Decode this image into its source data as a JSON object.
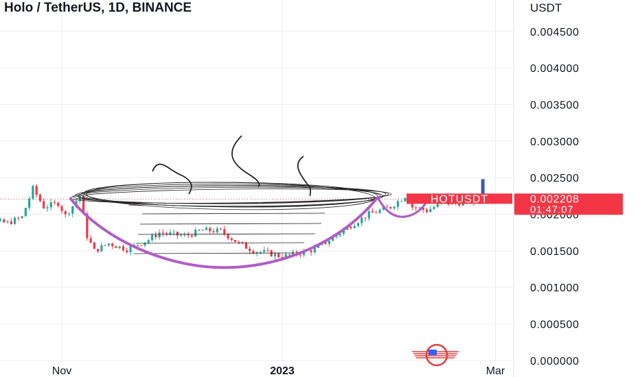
{
  "header": {
    "title": "Holo / TetherUS, 1D, BINANCE",
    "currency": "USDT"
  },
  "price_tag": {
    "symbol": "HOTUSDT",
    "price": "0.002208",
    "countdown": "01:47:07",
    "color": "#f23645"
  },
  "colors": {
    "up": "#26a69a",
    "down": "#f23645",
    "cup_line": "#b05cc6",
    "sketch": "#222222",
    "grid": "#eceef2",
    "axis_text": "#131722"
  },
  "icons": [
    "logo-icon"
  ],
  "chart_data": {
    "type": "candlestick",
    "title": "Holo / TetherUS, 1D, BINANCE",
    "ylabel": "USDT",
    "ylim": [
      -2e-05,
      0.00493
    ],
    "yticks": [
      "0.004500",
      "0.004000",
      "0.003500",
      "0.003000",
      "0.002500",
      "0.002000",
      "0.001500",
      "0.001000",
      "0.000500",
      "0.000000"
    ],
    "xticks": [
      "Nov",
      "2023",
      "Mar"
    ],
    "grid": true,
    "last_price": 0.002208,
    "price_points": [
      [
        "2022-10-04",
        0.002
      ],
      [
        "2022-10-10",
        0.00192
      ],
      [
        "2022-10-17",
        0.00188
      ],
      [
        "2022-10-21",
        0.00196
      ],
      [
        "2022-10-24",
        0.00235
      ],
      [
        "2022-10-27",
        0.0021
      ],
      [
        "2022-10-31",
        0.00215
      ],
      [
        "2022-11-02",
        0.00198
      ],
      [
        "2022-11-06",
        0.00225
      ],
      [
        "2022-11-08",
        0.0017
      ],
      [
        "2022-11-10",
        0.0015
      ],
      [
        "2022-11-14",
        0.0016
      ],
      [
        "2022-11-19",
        0.00152
      ],
      [
        "2022-11-25",
        0.00165
      ],
      [
        "2022-11-28",
        0.00175
      ],
      [
        "2022-12-05",
        0.0017
      ],
      [
        "2022-12-10",
        0.00178
      ],
      [
        "2022-12-15",
        0.00177
      ],
      [
        "2022-12-20",
        0.0016
      ],
      [
        "2022-12-24",
        0.0015
      ],
      [
        "2022-12-28",
        0.00147
      ],
      [
        "2023-01-01",
        0.00142
      ],
      [
        "2023-01-05",
        0.00146
      ],
      [
        "2023-01-10",
        0.00152
      ],
      [
        "2023-01-15",
        0.00168
      ],
      [
        "2023-01-20",
        0.00185
      ],
      [
        "2023-01-25",
        0.002
      ],
      [
        "2023-01-31",
        0.0021
      ],
      [
        "2023-02-04",
        0.00225
      ],
      [
        "2023-02-06",
        0.0021
      ],
      [
        "2023-02-10",
        0.00205
      ],
      [
        "2023-02-14",
        0.00215
      ],
      [
        "2023-02-18",
        0.00215
      ],
      [
        "2023-02-22",
        0.00218
      ],
      [
        "2023-02-25",
        0.002208
      ]
    ]
  }
}
